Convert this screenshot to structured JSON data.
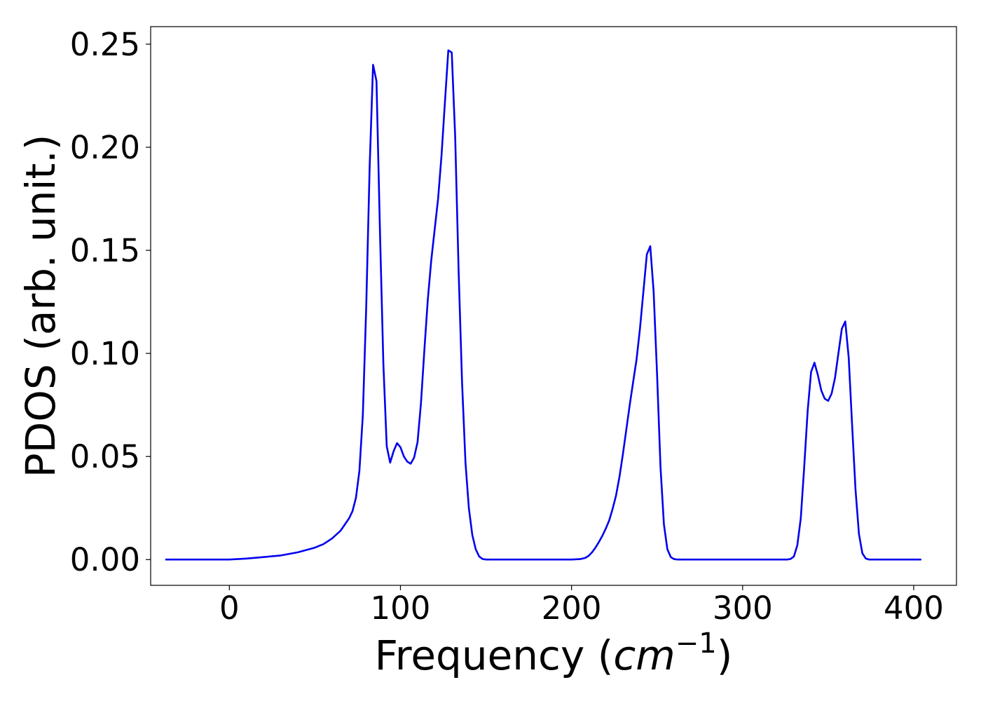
{
  "chart_data": {
    "type": "line",
    "title": "",
    "xlabel_main": "Frequency (",
    "xlabel_unit": "cm",
    "xlabel_exp": "−1",
    "xlabel_close": ")",
    "ylabel": "PDOS (arb. unit.)",
    "xlim": [
      -46,
      425
    ],
    "ylim": [
      -0.0125,
      0.2585
    ],
    "xticks": [
      0,
      100,
      200,
      300,
      400
    ],
    "xtick_labels": [
      "0",
      "100",
      "200",
      "300",
      "400"
    ],
    "yticks": [
      0.0,
      0.05,
      0.1,
      0.15,
      0.2,
      0.25
    ],
    "ytick_labels": [
      "0.00",
      "0.05",
      "0.10",
      "0.15",
      "0.20",
      "0.25"
    ],
    "grid": false,
    "series": [
      {
        "color": "#0000ee",
        "x": [
          -37,
          0,
          10,
          20,
          30,
          40,
          50,
          55,
          60,
          65,
          70,
          72,
          74,
          76,
          78,
          80,
          82,
          84,
          86,
          88,
          90,
          92,
          94,
          96,
          98,
          100,
          102,
          104,
          106,
          108,
          110,
          112,
          114,
          116,
          118,
          120,
          122,
          124,
          126,
          128,
          130,
          132,
          134,
          136,
          138,
          140,
          142,
          144,
          146,
          148,
          150,
          152,
          154,
          156,
          160,
          170,
          180,
          190,
          200,
          205,
          208,
          210,
          212,
          214,
          216,
          218,
          220,
          222,
          224,
          226,
          228,
          230,
          232,
          234,
          236,
          238,
          240,
          242,
          244,
          246,
          248,
          250,
          252,
          254,
          256,
          258,
          260,
          262,
          264,
          266,
          268,
          270,
          275,
          300,
          320,
          326,
          328,
          330,
          332,
          334,
          336,
          338,
          340,
          342,
          344,
          346,
          348,
          350,
          352,
          354,
          356,
          358,
          360,
          362,
          364,
          366,
          368,
          370,
          372,
          374,
          376,
          378,
          380,
          390,
          404
        ],
        "y": [
          0.0,
          0.0,
          0.0005,
          0.0012,
          0.002,
          0.0035,
          0.0058,
          0.0075,
          0.0102,
          0.014,
          0.02,
          0.0235,
          0.03,
          0.043,
          0.07,
          0.122,
          0.19,
          0.24,
          0.232,
          0.16,
          0.095,
          0.055,
          0.047,
          0.0525,
          0.0565,
          0.0545,
          0.05,
          0.0475,
          0.0465,
          0.0495,
          0.057,
          0.076,
          0.102,
          0.126,
          0.145,
          0.16,
          0.175,
          0.196,
          0.222,
          0.247,
          0.246,
          0.205,
          0.14,
          0.086,
          0.047,
          0.025,
          0.012,
          0.005,
          0.0015,
          0.0003,
          0.0,
          0.0,
          0.0,
          0.0,
          0.0,
          0.0,
          0.0,
          0.0,
          0.0,
          0.0002,
          0.0008,
          0.0018,
          0.0035,
          0.0058,
          0.0085,
          0.0115,
          0.015,
          0.019,
          0.0245,
          0.031,
          0.04,
          0.051,
          0.063,
          0.075,
          0.086,
          0.097,
          0.112,
          0.13,
          0.148,
          0.152,
          0.13,
          0.09,
          0.045,
          0.017,
          0.005,
          0.0012,
          0.0002,
          0.0,
          0.0,
          0.0,
          0.0,
          0.0,
          0.0,
          0.0,
          0.0,
          0.0,
          0.0003,
          0.0015,
          0.007,
          0.02,
          0.045,
          0.072,
          0.091,
          0.0955,
          0.0895,
          0.082,
          0.078,
          0.077,
          0.0805,
          0.088,
          0.1,
          0.112,
          0.1155,
          0.098,
          0.065,
          0.034,
          0.0125,
          0.003,
          0.0005,
          0.0,
          0.0,
          0.0,
          0.0,
          0.0,
          0.0
        ]
      }
    ]
  }
}
